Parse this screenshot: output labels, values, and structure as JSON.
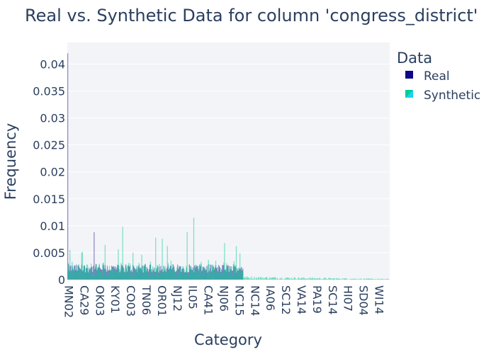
{
  "chart_data": {
    "type": "bar",
    "title": "Real vs. Synthetic Data for column 'congress_district'",
    "xlabel": "Category",
    "ylabel": "Frequency",
    "ylim": [
      0,
      0.044
    ],
    "y_ticks": [
      0,
      0.005,
      0.01,
      0.015,
      0.02,
      0.025,
      0.03,
      0.035,
      0.04
    ],
    "y_tick_labels": [
      "0",
      "0.005",
      "0.01",
      "0.015",
      "0.02",
      "0.025",
      "0.03",
      "0.035",
      "0.04"
    ],
    "x_tick_labels": [
      "MN02",
      "CA29",
      "OK03",
      "KY01",
      "CO03",
      "TN06",
      "OR01",
      "NJ12",
      "IL05",
      "CA41",
      "NJ06",
      "NC15",
      "NC14",
      "IA06",
      "SC12",
      "VA14",
      "PA19",
      "SC14",
      "HI07",
      "SD04",
      "WI14"
    ],
    "grid": true,
    "legend": {
      "title": "Data",
      "position": "top-right",
      "entries": [
        {
          "name": "Real",
          "color": "#0d0887"
        },
        {
          "name": "Synthetic",
          "color": "#00cc96"
        }
      ]
    },
    "series_summary": {
      "category_count": 440,
      "real_max": 0.042,
      "synthetic_max": 0.0115,
      "typical_frequency_first_half": 0.0022,
      "typical_frequency_second_half": 0.0002
    }
  },
  "colors": {
    "plot_bg": "#e5ecf6",
    "real": "#0d0887",
    "synthetic": "#00cc96",
    "text": "#2a3f5f"
  }
}
